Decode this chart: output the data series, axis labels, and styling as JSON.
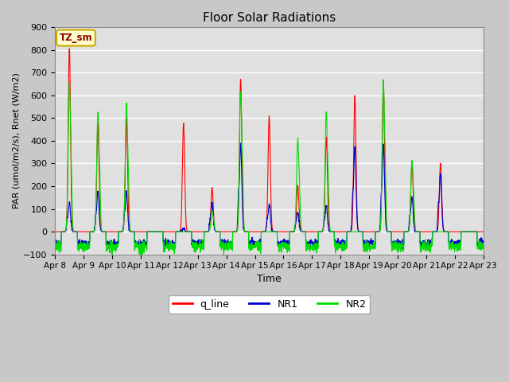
{
  "title": "Floor Solar Radiations",
  "xlabel": "Time",
  "ylabel": "PAR (umol/m2/s), Rnet (W/m2)",
  "ylim": [
    -100,
    900
  ],
  "annotation": "TZ_sm",
  "legend_labels": [
    "q_line",
    "NR1",
    "NR2"
  ],
  "legend_colors": [
    "#ff0000",
    "#0000cc",
    "#00dd00"
  ],
  "xtick_labels": [
    "Apr 8",
    "Apr 9",
    "Apr 10",
    "Apr 11",
    "Apr 12",
    "Apr 13",
    "Apr 14",
    "Apr 15",
    "Apr 16",
    "Apr 17",
    "Apr 18",
    "Apr 19",
    "Apr 20",
    "Apr 21",
    "Apr 22",
    "Apr 23"
  ],
  "background_color": "#e0e0e0",
  "grid_color": "#ffffff",
  "num_days": 15,
  "figwidth": 6.4,
  "figheight": 4.8,
  "dpi": 100,
  "day_peaks_q": [
    810,
    480,
    500,
    0,
    475,
    195,
    670,
    505,
    205,
    415,
    600,
    660,
    305,
    305,
    0
  ],
  "day_peaks_nr1": [
    130,
    175,
    175,
    0,
    15,
    120,
    385,
    120,
    85,
    110,
    375,
    380,
    150,
    255,
    0
  ],
  "day_peaks_nr2": [
    660,
    530,
    565,
    0,
    0,
    90,
    615,
    0,
    400,
    525,
    0,
    655,
    310,
    0,
    0
  ],
  "nr1_night": -50,
  "nr2_night": -65,
  "pulse_sigma": 0.04,
  "samples_per_day": 144
}
